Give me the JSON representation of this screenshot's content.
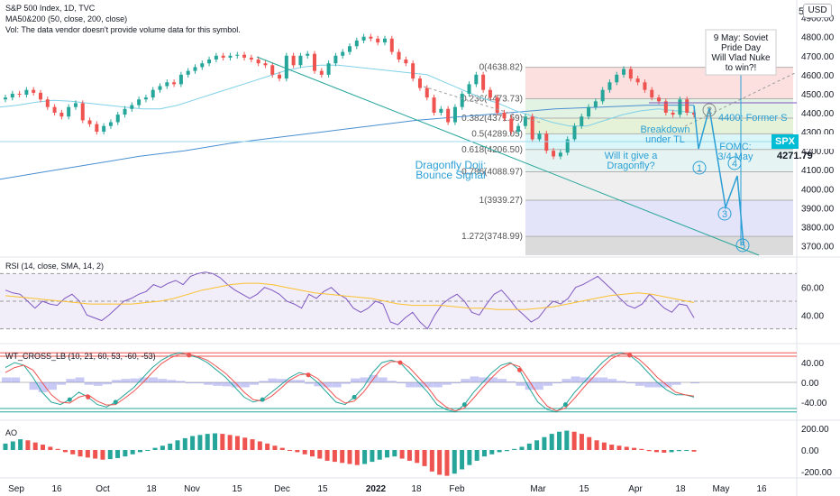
{
  "header": {
    "title": "S&P 500 Index, 1D, TVC",
    "ma_legend": "MA50&200 (50, close, 200, close)",
    "vol_legend": "Vol: The data vendor doesn't provide volume data for this symbol."
  },
  "currency_button": "USD",
  "price_tag": {
    "symbol": "SPX",
    "value": "4271.79"
  },
  "colors": {
    "up": "#26a69a",
    "down": "#ef5350",
    "ma50": "#7fd1e8",
    "ma200": "#4a8fd1",
    "rsi": "#7e57c2",
    "rsi_ma": "#fbc02d",
    "ao_up": "#26a69a",
    "ao_down": "#ef5350",
    "fib_line": "#b0b0b0",
    "annotation": "#2a9fd6"
  },
  "chart_data": {
    "type": "line",
    "title": "S&P 500 Index, 1D, TVC",
    "price_axis": {
      "ticks": [
        "4900.00",
        "4800.00",
        "4700.00",
        "4600.00",
        "4500.00",
        "4400.00",
        "4300.00",
        "4200.00",
        "4100.00",
        "4000.00",
        "3900.00",
        "3800.00",
        "3700.00"
      ],
      "ylim": [
        3650,
        4960
      ],
      "label": "5"
    },
    "time_axis": {
      "ticks": [
        "Sep",
        "16",
        "Oct",
        "18",
        "Nov",
        "15",
        "Dec",
        "15",
        "2022",
        "18",
        "Feb",
        "Mar",
        "15",
        "Apr",
        "18",
        "May",
        "16"
      ]
    },
    "price_series_close": [
      4480,
      4500,
      4495,
      4520,
      4505,
      4470,
      4430,
      4400,
      4380,
      4430,
      4450,
      4360,
      4340,
      4300,
      4330,
      4350,
      4390,
      4420,
      4440,
      4470,
      4480,
      4520,
      4540,
      4560,
      4550,
      4600,
      4620,
      4640,
      4660,
      4680,
      4700,
      4690,
      4700,
      4705,
      4690,
      4680,
      4660,
      4650,
      4600,
      4580,
      4700,
      4650,
      4700,
      4710,
      4620,
      4600,
      4660,
      4700,
      4720,
      4750,
      4780,
      4800,
      4790,
      4770,
      4790,
      4720,
      4680,
      4660,
      4580,
      4530,
      4480,
      4400,
      4420,
      4350,
      4430,
      4500,
      4550,
      4600,
      4520,
      4480,
      4400,
      4370,
      4300,
      4330,
      4380,
      4260,
      4290,
      4200,
      4170,
      4190,
      4260,
      4330,
      4380,
      4430,
      4460,
      4520,
      4560,
      4600,
      4630,
      4580,
      4560,
      4520,
      4480,
      4460,
      4400,
      4390,
      4470,
      4400,
      4390
    ],
    "ma50": [
      4430,
      4440,
      4455,
      4465,
      4460,
      4450,
      4440,
      4430,
      4420,
      4420,
      4440,
      4470,
      4500,
      4530,
      4560,
      4590,
      4620,
      4640,
      4650,
      4650,
      4640,
      4630,
      4620,
      4610,
      4600,
      4560,
      4520,
      4480,
      4450,
      4410,
      4380,
      4350,
      4330,
      4330,
      4360,
      4390,
      4410,
      4420,
      4410,
      4400
    ],
    "ma200": [
      4050,
      4090,
      4130,
      4170,
      4200,
      4240,
      4270,
      4300,
      4330,
      4360,
      4380,
      4400,
      4420,
      4430,
      4440,
      4440
    ],
    "fib_levels": [
      {
        "label": "0(4638.82)",
        "value": 4638.82
      },
      {
        "label": "0.236(4473.73)",
        "value": 4473.73
      },
      {
        "label": "0.382(4371.59)",
        "value": 4371.59
      },
      {
        "label": "0.5(4289.05)",
        "value": 4289.05
      },
      {
        "label": "0.618(4206.50)",
        "value": 4206.5
      },
      {
        "label": "0.786(4088.97)",
        "value": 4088.97
      },
      {
        "label": "1(3939.27)",
        "value": 3939.27
      },
      {
        "label": "1.272(3748.99)",
        "value": 3748.99
      }
    ],
    "annotations": [
      "9 May: Soviet\nPride Day\nWill Vlad Nuke\nto win?!",
      "4400: Former S",
      "Breakdown\nunder TL",
      "FOMC:\n3/4 May",
      "Will it give a\nDragonfly?",
      "Dragonfly Doji:\nBounce Signal"
    ],
    "wave_labels": [
      "1",
      "2",
      "3",
      "4",
      "5"
    ],
    "rsi": {
      "legend": "RSI (14, close, SMA, 14, 2)",
      "ticks": [
        "60.00",
        "40.00"
      ],
      "values": [
        58,
        56,
        55,
        50,
        45,
        50,
        48,
        47,
        52,
        55,
        50,
        40,
        38,
        36,
        40,
        45,
        50,
        52,
        55,
        57,
        62,
        60,
        63,
        65,
        62,
        68,
        70,
        71,
        70,
        67,
        62,
        58,
        55,
        52,
        55,
        60,
        58,
        55,
        50,
        48,
        45,
        55,
        52,
        57,
        60,
        55,
        52,
        45,
        42,
        45,
        50,
        48,
        35,
        33,
        38,
        42,
        35,
        30,
        40,
        48,
        52,
        55,
        50,
        42,
        40,
        48,
        55,
        58,
        52,
        45,
        40,
        35,
        38,
        45,
        50,
        48,
        52,
        60,
        62,
        65,
        68,
        63,
        58,
        52,
        47,
        45,
        48,
        55,
        50,
        45,
        42,
        48,
        47,
        38
      ],
      "sma": [
        54,
        53,
        52,
        51,
        50,
        49,
        48,
        48,
        48,
        48,
        49,
        50,
        52,
        55,
        58,
        60,
        62,
        63,
        63,
        62,
        60,
        58,
        56,
        55,
        54,
        53,
        52,
        50,
        48,
        47,
        47,
        47,
        46,
        45,
        45,
        44,
        44,
        44,
        45,
        46,
        48,
        50,
        52,
        54,
        55,
        56,
        55,
        53,
        51,
        49
      ]
    },
    "wt_cross": {
      "legend": "WT_CROSS_LB (10, 21, 60, 53, -60, -53)",
      "ticks": [
        "40.00",
        "0.00",
        "-40.00"
      ],
      "wt1": [
        30,
        40,
        35,
        10,
        -20,
        -40,
        -45,
        -35,
        -20,
        -30,
        -45,
        -50,
        -40,
        -25,
        -10,
        10,
        30,
        45,
        55,
        60,
        55,
        50,
        40,
        25,
        10,
        -10,
        -30,
        -40,
        -35,
        -20,
        -5,
        10,
        20,
        15,
        0,
        -20,
        -40,
        -45,
        -30,
        -10,
        20,
        40,
        45,
        40,
        20,
        0,
        -20,
        -45,
        -55,
        -60,
        -45,
        -20,
        0,
        20,
        35,
        40,
        25,
        -10,
        -40,
        -55,
        -60,
        -45,
        -20,
        0,
        20,
        40,
        55,
        60,
        55,
        40,
        20,
        0,
        -15,
        -25,
        -25,
        -30
      ],
      "wt2": [
        20,
        30,
        35,
        25,
        0,
        -25,
        -40,
        -42,
        -30,
        -25,
        -38,
        -46,
        -45,
        -32,
        -18,
        0,
        20,
        38,
        50,
        57,
        57,
        52,
        45,
        32,
        18,
        0,
        -20,
        -35,
        -38,
        -28,
        -12,
        5,
        15,
        18,
        8,
        -10,
        -30,
        -42,
        -38,
        -20,
        5,
        30,
        42,
        42,
        30,
        10,
        -10,
        -35,
        -50,
        -58,
        -52,
        -32,
        -10,
        10,
        28,
        38,
        32,
        5,
        -25,
        -48,
        -58,
        -52,
        -32,
        -10,
        10,
        30,
        48,
        57,
        57,
        47,
        30,
        10,
        -5,
        -20,
        -25,
        -28
      ]
    },
    "ao": {
      "legend": "AO",
      "ticks": [
        "200.00",
        "0.00",
        "-200.00"
      ],
      "values": [
        60,
        80,
        100,
        90,
        70,
        50,
        30,
        10,
        -20,
        -40,
        -60,
        -70,
        -80,
        -90,
        -85,
        -75,
        -60,
        -40,
        -20,
        0,
        20,
        40,
        60,
        90,
        110,
        130,
        140,
        150,
        155,
        150,
        140,
        130,
        115,
        100,
        80,
        60,
        40,
        20,
        0,
        -20,
        -40,
        -60,
        -80,
        -100,
        -110,
        -120,
        -130,
        -140,
        -130,
        -110,
        -90,
        -70,
        -60,
        -80,
        -100,
        -120,
        -150,
        -200,
        -230,
        -240,
        -220,
        -180,
        -140,
        -100,
        -60,
        -40,
        -20,
        -10,
        10,
        30,
        60,
        90,
        120,
        150,
        170,
        180,
        170,
        150,
        120,
        90,
        70,
        50,
        40,
        30,
        20,
        10,
        -10,
        -20,
        -25,
        -20,
        -10,
        -5,
        -15
      ]
    }
  }
}
